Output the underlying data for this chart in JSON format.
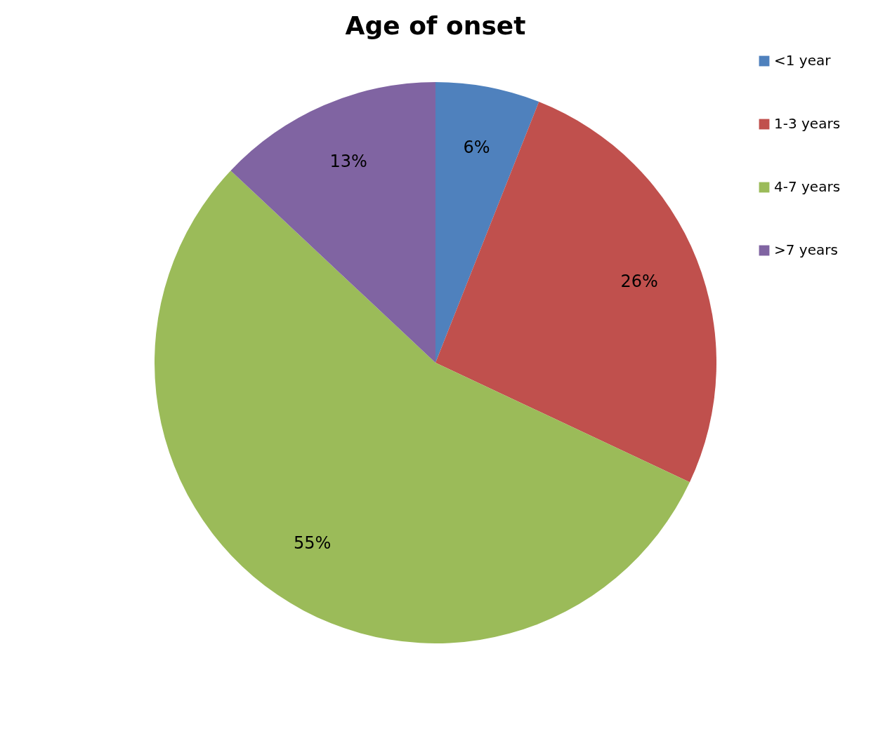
{
  "chart_data": {
    "type": "pie",
    "title": "Age of onset",
    "categories": [
      "<1 year",
      "1-3 years",
      "4-7 years",
      ">7 years"
    ],
    "values": [
      6,
      26,
      55,
      13
    ],
    "value_labels": [
      "6%",
      "26%",
      "55%",
      "13%"
    ],
    "colors": [
      "#4f81bd",
      "#c0504d",
      "#9bbb59",
      "#8064a2"
    ],
    "legend": "right"
  }
}
